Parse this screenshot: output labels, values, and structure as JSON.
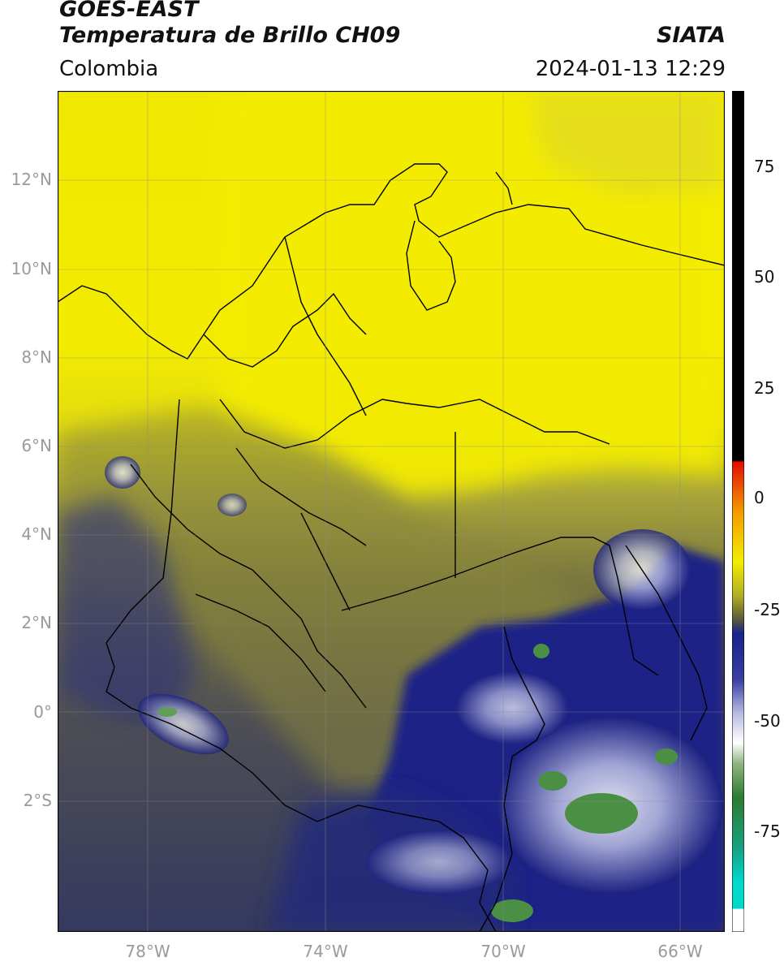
{
  "header": {
    "title_line1": "GOES-EAST",
    "title_line2": "Temperatura de Brillo CH09",
    "region": "Colombia",
    "agency": "SIATA",
    "timestamp": "2024-01-13 12:29"
  },
  "map": {
    "lat_ticks": [
      "12°N",
      "10°N",
      "8°N",
      "6°N",
      "4°N",
      "2°N",
      "0°",
      "2°S"
    ],
    "lon_ticks": [
      "78°W",
      "74°W",
      "70°W",
      "66°W"
    ]
  },
  "colorbar": {
    "ticks": [
      "75",
      "50",
      "25",
      "0",
      "-25",
      "-50",
      "-75"
    ]
  },
  "colors": {
    "warm": "#f2ee00",
    "olive": "#7f7d2c",
    "blue": "#1a1f7a",
    "white": "#ffffff",
    "green": "#3f8f3f"
  }
}
